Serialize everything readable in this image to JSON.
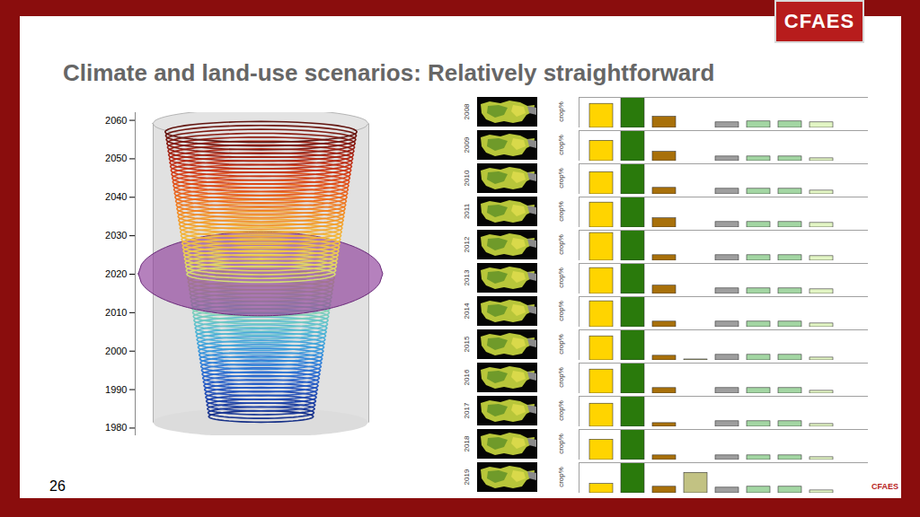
{
  "title": "Climate and land-use scenarios: Relatively straightforward",
  "logo": "CFAES",
  "footer_logo": "CFAES",
  "page_number": "26",
  "chart_data": [
    {
      "type": "line",
      "ylim": [
        1978,
        2062
      ],
      "yticks": [
        1980,
        1990,
        2000,
        2010,
        2020,
        2030,
        2040,
        2050,
        2060
      ],
      "tick_labels": "y",
      "highlight_year": 2020,
      "loop_years": [
        1983,
        1984,
        1985,
        1986,
        1987,
        1988,
        1989,
        1990,
        1991,
        1992,
        1993,
        1994,
        1995,
        1996,
        1997,
        1998,
        1999,
        2000,
        2001,
        2002,
        2003,
        2004,
        2005,
        2006,
        2007,
        2008,
        2009,
        2010,
        2011,
        2012,
        2013,
        2014,
        2015,
        2016,
        2017,
        2018,
        2019,
        2020,
        2021,
        2022,
        2023,
        2024,
        2025,
        2026,
        2027,
        2028,
        2029,
        2030,
        2031,
        2032,
        2033,
        2034,
        2035,
        2036,
        2037,
        2038,
        2039,
        2040,
        2041,
        2042,
        2043,
        2044,
        2045,
        2046,
        2047,
        2048,
        2049,
        2050,
        2051,
        2052,
        2053,
        2054,
        2055,
        2056,
        2057
      ]
    },
    {
      "type": "bar",
      "y_label": "crop%",
      "categories": [
        null,
        null,
        null,
        null,
        null,
        null,
        null,
        null
      ],
      "colors": [
        "#ffd400",
        "#2a7a0c",
        "#a8700a",
        "#c2c283",
        "#9e9e9e",
        "#a3d6a3",
        "#a3d6a3",
        "#e2f5c4"
      ],
      "ylim": [
        0,
        33
      ],
      "tick_labels": false,
      "panels": [
        {
          "title": "2008",
          "values": [
            26,
            33,
            12,
            0,
            6,
            7,
            7,
            6
          ]
        },
        {
          "title": "2009",
          "values": [
            22,
            33,
            10,
            0,
            5,
            5,
            5,
            3
          ]
        },
        {
          "title": "2010",
          "values": [
            24,
            33,
            7,
            0,
            6,
            6,
            6,
            4
          ]
        },
        {
          "title": "2011",
          "values": [
            27,
            33,
            10,
            0,
            6,
            6,
            6,
            5
          ]
        },
        {
          "title": "2012",
          "values": [
            30,
            33,
            6,
            0,
            6,
            6,
            6,
            5
          ]
        },
        {
          "title": "2013",
          "values": [
            28,
            33,
            9,
            0,
            6,
            6,
            6,
            5
          ]
        },
        {
          "title": "2014",
          "values": [
            28,
            33,
            6,
            0,
            6,
            6,
            6,
            4
          ]
        },
        {
          "title": "2015",
          "values": [
            26,
            33,
            5,
            1,
            6,
            6,
            6,
            3
          ]
        },
        {
          "title": "2016",
          "values": [
            26,
            33,
            6,
            0,
            6,
            6,
            6,
            3
          ]
        },
        {
          "title": "2017",
          "values": [
            25,
            33,
            4,
            0,
            6,
            6,
            6,
            3
          ]
        },
        {
          "title": "2018",
          "values": [
            22,
            33,
            5,
            0,
            5,
            5,
            5,
            3
          ]
        },
        {
          "title": "2019",
          "values": [
            10,
            33,
            7,
            22,
            6,
            7,
            7,
            3
          ]
        }
      ]
    }
  ]
}
